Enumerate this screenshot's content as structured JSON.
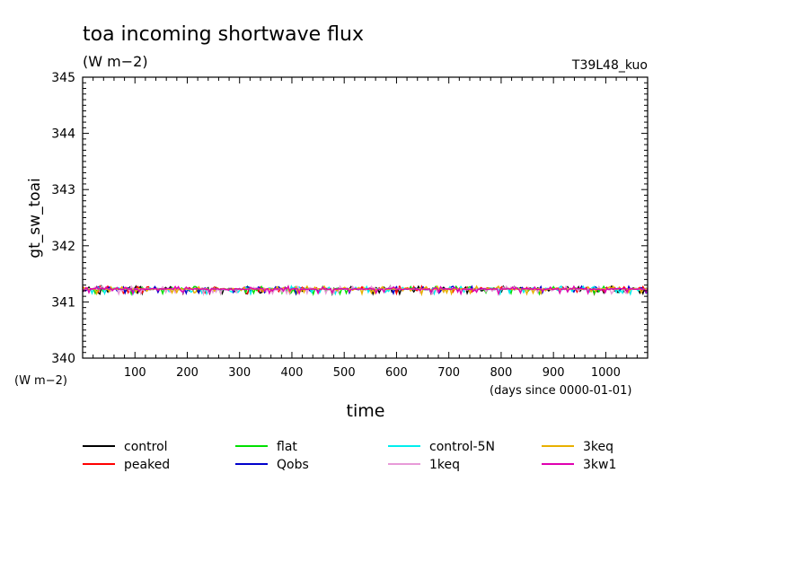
{
  "chart_data": {
    "type": "line",
    "title": "toa incoming shortwave flux",
    "subtitle": "(W m−2)",
    "experiment": "T39L48_kuo",
    "xlabel": "time",
    "x_unit_note": "(days since 0000-01-01)",
    "ylabel": "gt_sw_toai",
    "y_unit_note": "(W m−2)",
    "xlim": [
      0,
      1080
    ],
    "ylim": [
      340,
      345
    ],
    "x_ticks": [
      100,
      200,
      300,
      400,
      500,
      600,
      700,
      800,
      900,
      1000
    ],
    "y_ticks": [
      340,
      341,
      342,
      343,
      344,
      345
    ],
    "grid": false,
    "legend_position": "bottom",
    "series": [
      {
        "name": "control",
        "color": "#000000",
        "mean": 341.23
      },
      {
        "name": "peaked",
        "color": "#ff0000",
        "mean": 341.23
      },
      {
        "name": "flat",
        "color": "#00e000",
        "mean": 341.23
      },
      {
        "name": "Qobs",
        "color": "#0000cc",
        "mean": 341.23
      },
      {
        "name": "control-5N",
        "color": "#00eeee",
        "mean": 341.23
      },
      {
        "name": "1keq",
        "color": "#e89ad8",
        "mean": 341.23
      },
      {
        "name": "3keq",
        "color": "#e8b000",
        "mean": 341.23
      },
      {
        "name": "3kw1",
        "color": "#e000b0",
        "mean": 341.23
      }
    ]
  }
}
